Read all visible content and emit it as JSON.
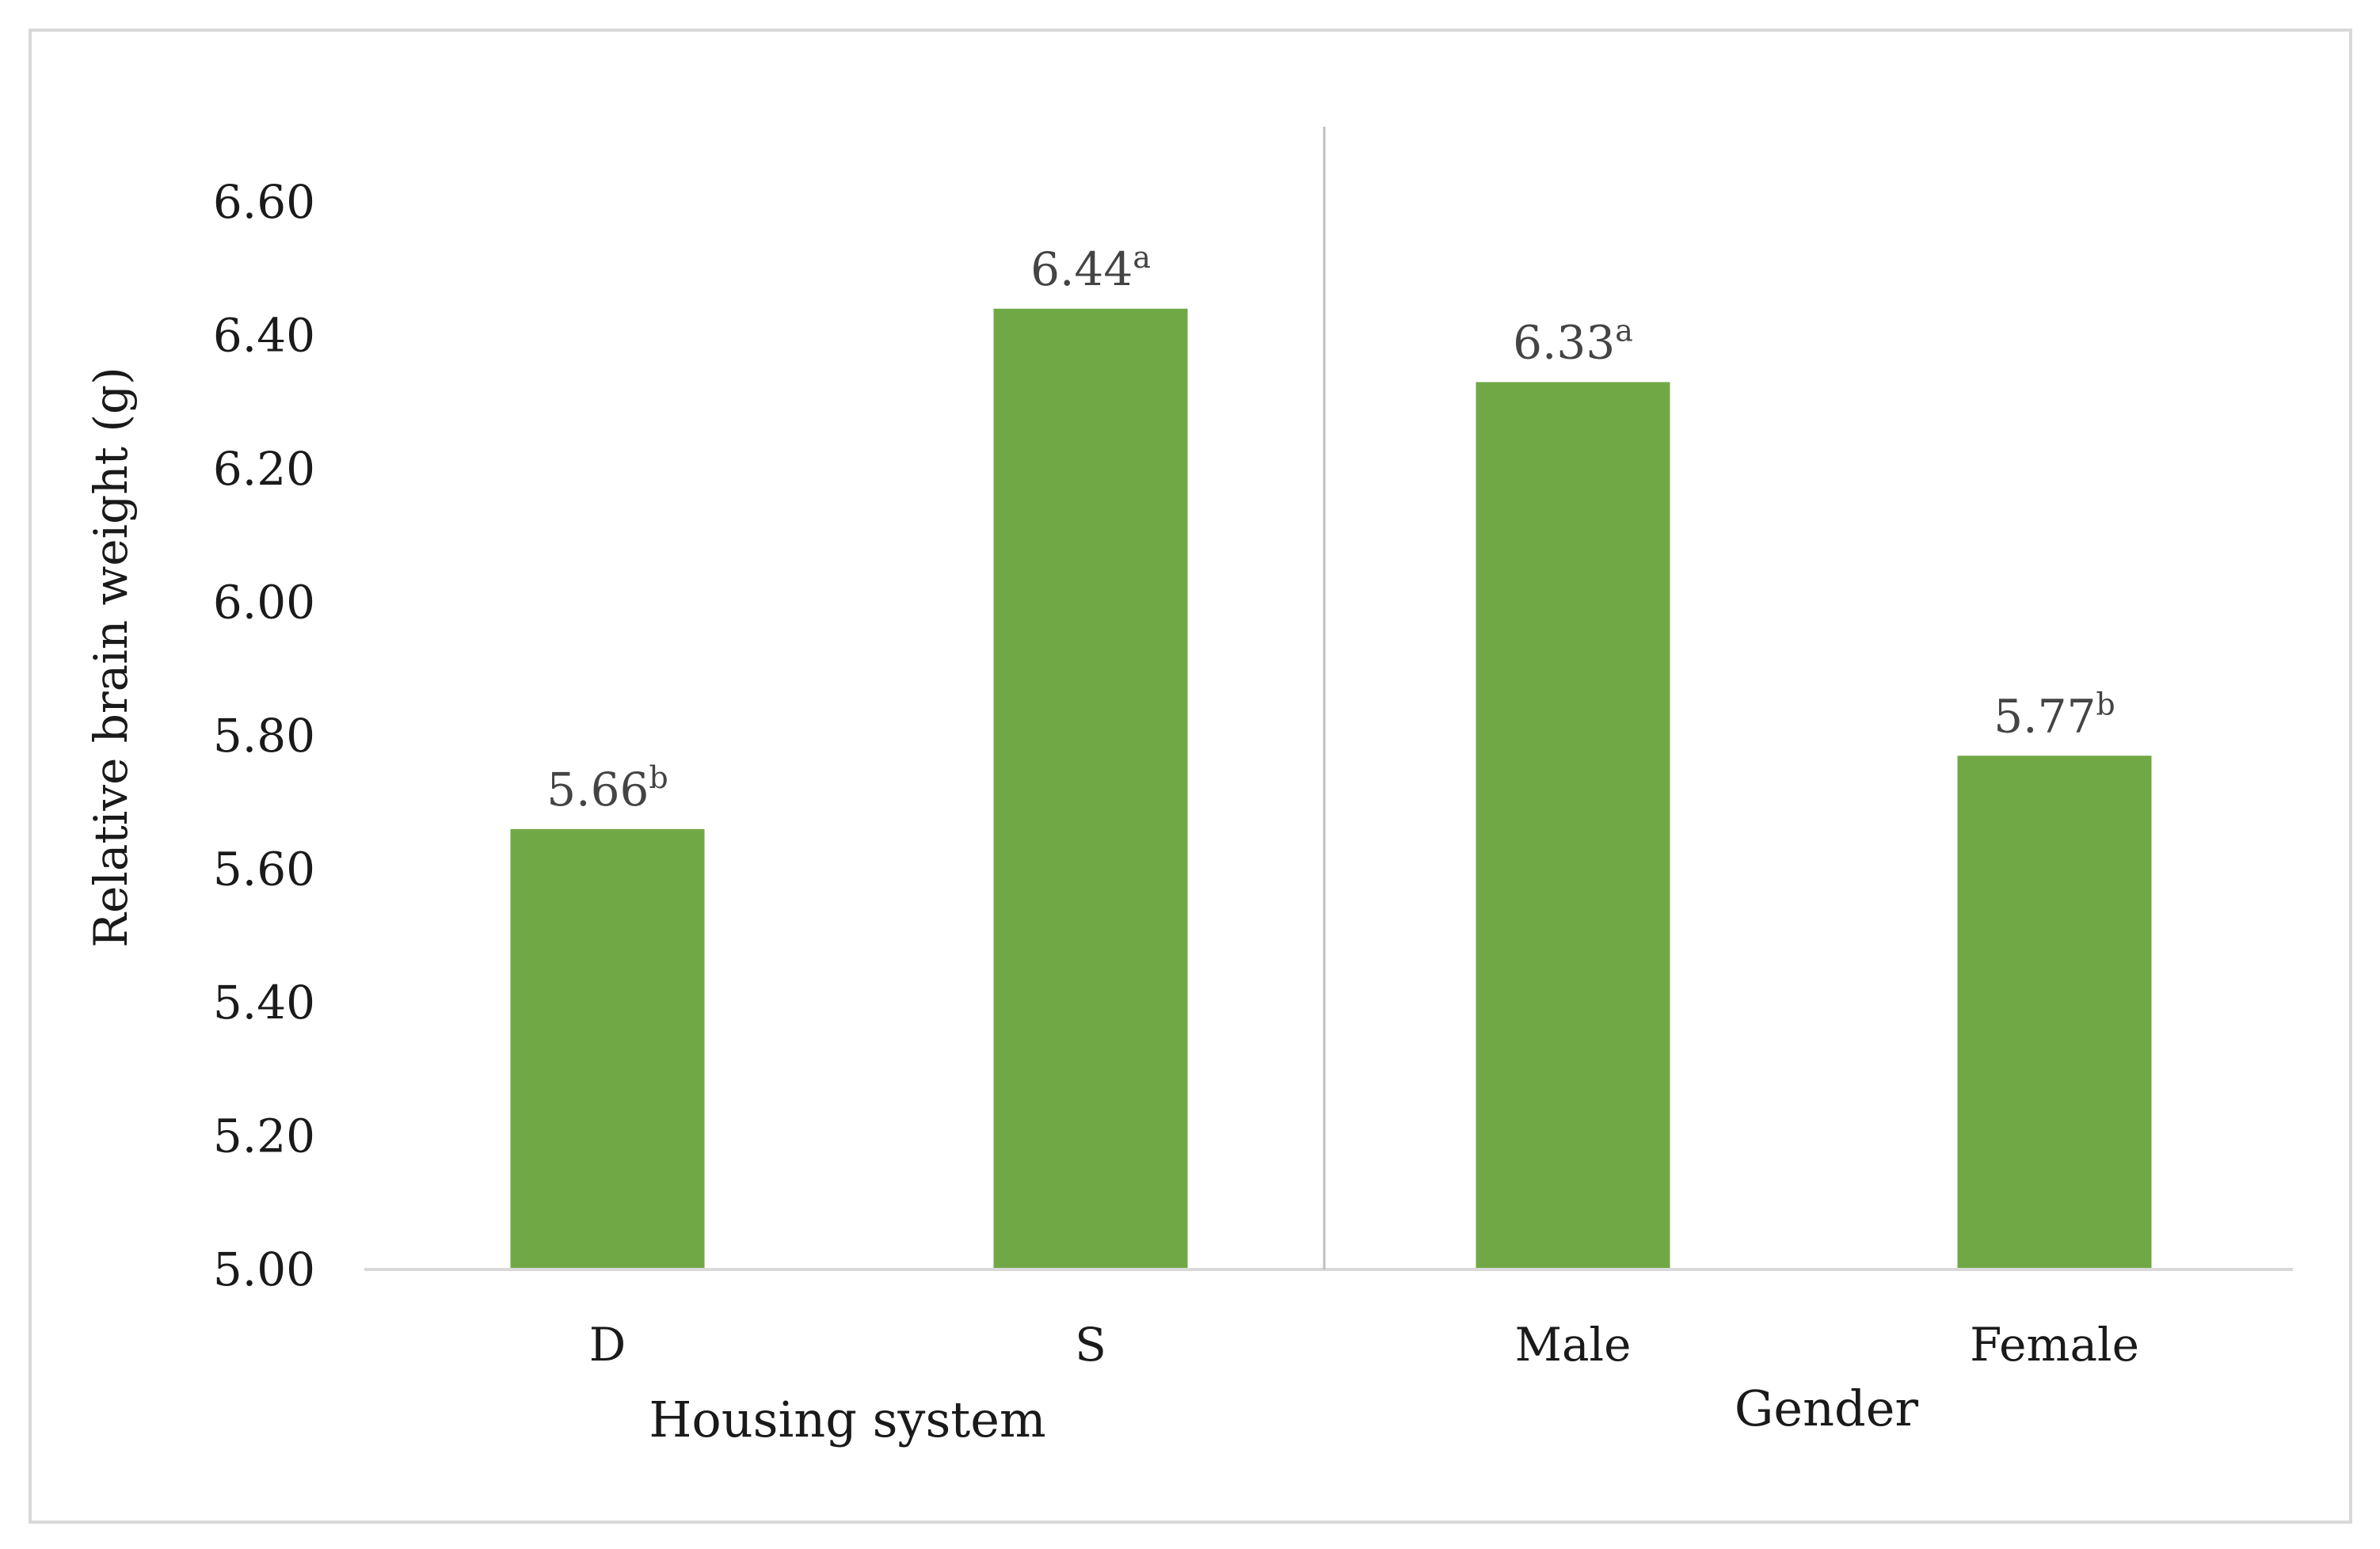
{
  "chart_data": {
    "type": "bar",
    "title": "",
    "xlabel": "",
    "ylabel": "Relative brain weight (g)",
    "ylim": [
      5.0,
      6.6
    ],
    "yticks": [
      "5.00",
      "5.20",
      "5.40",
      "5.60",
      "5.80",
      "6.00",
      "6.20",
      "6.40",
      "6.60"
    ],
    "ytick_values": [
      5.0,
      5.2,
      5.4,
      5.6,
      5.8,
      6.0,
      6.2,
      6.4,
      6.6
    ],
    "grid": false,
    "bar_color": "#70a846",
    "groups": [
      {
        "name": "Housing system",
        "categories": [
          "D",
          "S"
        ]
      },
      {
        "name": "Gender",
        "categories": [
          "Male",
          "Female"
        ]
      }
    ],
    "categories": [
      "D",
      "S",
      "Male",
      "Female"
    ],
    "values": [
      5.66,
      6.44,
      6.33,
      5.77
    ],
    "value_labels": [
      "5.66",
      "6.44",
      "6.33",
      "5.77"
    ],
    "superscripts": [
      "b",
      "a",
      "a",
      "b"
    ]
  },
  "colors": {
    "bar": "#70a846",
    "axis": "#d9d9d9",
    "divider": "#bfbfbf",
    "text": "#1a1a1a",
    "data_label": "#444444"
  }
}
